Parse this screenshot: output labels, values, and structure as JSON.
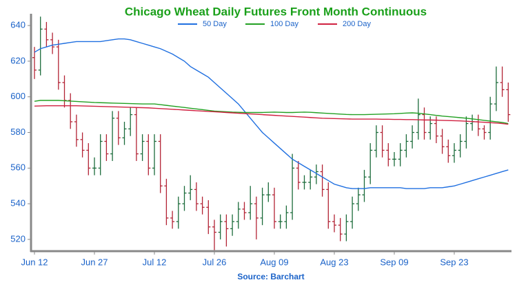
{
  "chart_data": {
    "type": "ohlc",
    "title": "Chicago Wheat Daily Futures Front Month Continuous",
    "source": "Source: Barchart",
    "categories": [
      "Jun 12",
      null,
      null,
      null,
      null,
      null,
      null,
      null,
      null,
      null,
      "Jun 27",
      null,
      null,
      null,
      null,
      null,
      null,
      null,
      null,
      null,
      "Jul 12",
      null,
      null,
      null,
      null,
      null,
      null,
      null,
      null,
      null,
      "Jul 26",
      null,
      null,
      null,
      null,
      null,
      null,
      null,
      null,
      null,
      "Aug 09",
      null,
      null,
      null,
      null,
      null,
      null,
      null,
      null,
      null,
      "Aug 23",
      null,
      null,
      null,
      null,
      null,
      null,
      null,
      null,
      null,
      "Sep 09",
      null,
      null,
      null,
      null,
      null,
      null,
      null,
      null,
      null,
      "Sep 23",
      null,
      null,
      null,
      null,
      null,
      null,
      null,
      null,
      null
    ],
    "open": [
      622,
      615,
      638,
      632,
      628,
      608,
      598,
      586,
      576,
      570,
      560,
      560,
      575,
      568,
      588,
      577,
      582,
      590,
      568,
      575,
      560,
      575,
      550,
      532,
      530,
      540,
      546,
      548,
      540,
      538,
      527,
      524,
      530,
      526,
      530,
      537,
      535,
      540,
      532,
      545,
      545,
      530,
      530,
      535,
      560,
      552,
      552,
      555,
      558,
      548,
      530,
      528,
      523,
      530,
      540,
      545,
      555,
      570,
      580,
      570,
      565,
      565,
      570,
      575,
      580,
      590,
      580,
      585,
      578,
      572,
      567,
      570,
      575,
      585,
      586,
      582,
      580,
      596,
      608,
      604
    ],
    "high": [
      628,
      645,
      642,
      636,
      632,
      612,
      602,
      590,
      580,
      574,
      566,
      579,
      579,
      592,
      592,
      586,
      594,
      594,
      579,
      579,
      579,
      579,
      554,
      536,
      544,
      550,
      556,
      552,
      544,
      542,
      531,
      534,
      534,
      534,
      541,
      541,
      550,
      544,
      549,
      552,
      549,
      534,
      539,
      568,
      564,
      556,
      559,
      562,
      562,
      552,
      534,
      532,
      534,
      544,
      549,
      559,
      574,
      584,
      584,
      574,
      569,
      574,
      579,
      584,
      599,
      594,
      589,
      589,
      582,
      576,
      574,
      579,
      589,
      590,
      590,
      584,
      600,
      617,
      617,
      608
    ],
    "low": [
      610,
      612,
      628,
      624,
      604,
      594,
      582,
      572,
      566,
      556,
      556,
      556,
      564,
      564,
      573,
      573,
      578,
      564,
      564,
      556,
      556,
      546,
      528,
      526,
      526,
      536,
      542,
      536,
      534,
      523,
      514,
      520,
      516,
      522,
      526,
      531,
      531,
      520,
      528,
      541,
      526,
      526,
      526,
      531,
      548,
      548,
      548,
      551,
      544,
      526,
      524,
      519,
      519,
      526,
      536,
      541,
      551,
      566,
      566,
      561,
      561,
      561,
      566,
      571,
      576,
      576,
      576,
      574,
      568,
      563,
      563,
      566,
      571,
      581,
      578,
      576,
      576,
      592,
      600,
      586
    ],
    "close": [
      615,
      638,
      632,
      628,
      608,
      598,
      586,
      576,
      570,
      560,
      560,
      575,
      568,
      588,
      577,
      582,
      590,
      568,
      575,
      560,
      575,
      550,
      532,
      530,
      540,
      546,
      548,
      540,
      538,
      527,
      524,
      530,
      526,
      530,
      537,
      535,
      540,
      532,
      545,
      545,
      530,
      530,
      535,
      560,
      552,
      552,
      555,
      558,
      548,
      530,
      528,
      523,
      530,
      540,
      545,
      555,
      570,
      580,
      570,
      565,
      565,
      570,
      575,
      580,
      590,
      580,
      585,
      578,
      572,
      567,
      570,
      575,
      585,
      586,
      582,
      580,
      596,
      608,
      604,
      590
    ],
    "up_color": "#1b6b3a",
    "down_color": "#b22234",
    "series": [
      {
        "name": "50 Day",
        "color": "#1f6fe0",
        "values": [
          625,
          627,
          628,
          629,
          629.5,
          630,
          630.5,
          631,
          631,
          631,
          631,
          631,
          631.5,
          632,
          632.5,
          632.5,
          632,
          631,
          630,
          629,
          628,
          627,
          625.5,
          624,
          622,
          620,
          617,
          615,
          613,
          611,
          608,
          605,
          602,
          599,
          596,
          592,
          588,
          584,
          580,
          577,
          574,
          571,
          568,
          565,
          563,
          561,
          559,
          557,
          555,
          553,
          551,
          550,
          549,
          548.5,
          548.5,
          548.5,
          549,
          549,
          549,
          549,
          549,
          549,
          548.5,
          548.5,
          548.5,
          548.5,
          549,
          549,
          549,
          549.5,
          550,
          551,
          552,
          553,
          554,
          555,
          556,
          557,
          558,
          559
        ]
      },
      {
        "name": "100 Day",
        "color": "#22a022",
        "values": [
          597.5,
          598,
          598,
          598,
          598,
          597.8,
          597.6,
          597.4,
          597.2,
          597,
          596.8,
          596.7,
          596.6,
          596.5,
          596.4,
          596.3,
          596.2,
          596.1,
          596,
          596,
          596,
          595.6,
          595.2,
          594.8,
          594.4,
          594,
          593.6,
          593.2,
          592.8,
          592.4,
          592,
          591.8,
          591.6,
          591.4,
          591.3,
          591.2,
          591.2,
          591.2,
          591.2,
          591.3,
          591.4,
          591.3,
          591.2,
          591.2,
          591.3,
          591.4,
          591.3,
          591.1,
          590.9,
          590.7,
          590.5,
          590.3,
          590.1,
          590,
          590,
          590,
          590.1,
          590.2,
          590.3,
          590.4,
          590.5,
          590.7,
          590.9,
          591,
          590.8,
          590.4,
          590,
          589.6,
          589.2,
          588.9,
          588.6,
          588.3,
          588,
          587.6,
          587.2,
          586.8,
          586.4,
          586,
          585.6,
          585
        ]
      },
      {
        "name": "200 Day",
        "color": "#d02040",
        "values": [
          594.8,
          594.9,
          595,
          595,
          595,
          595,
          595,
          595,
          594.9,
          594.8,
          594.7,
          594.6,
          594.5,
          594.4,
          594.3,
          594.2,
          594.1,
          594,
          593.9,
          593.8,
          593.6,
          593.4,
          593.2,
          593,
          592.8,
          592.6,
          592.4,
          592.2,
          592,
          591.8,
          591.6,
          591.4,
          591.2,
          591,
          590.8,
          590.6,
          590.4,
          590.2,
          590,
          589.8,
          589.6,
          589.4,
          589.2,
          589,
          588.8,
          588.6,
          588.4,
          588.2,
          588,
          587.9,
          587.8,
          587.7,
          587.6,
          587.5,
          587.5,
          587.5,
          587.5,
          587.5,
          587.4,
          587.4,
          587.3,
          587.3,
          587.2,
          587.2,
          587.1,
          587,
          587,
          586.9,
          586.8,
          586.7,
          586.6,
          586.5,
          586.3,
          586.1,
          585.9,
          585.7,
          585.5,
          585.3,
          585,
          584.6
        ]
      }
    ],
    "ylim": [
      513.4,
      646.6
    ],
    "yticks": [
      520,
      540,
      560,
      580,
      600,
      620,
      640
    ]
  }
}
